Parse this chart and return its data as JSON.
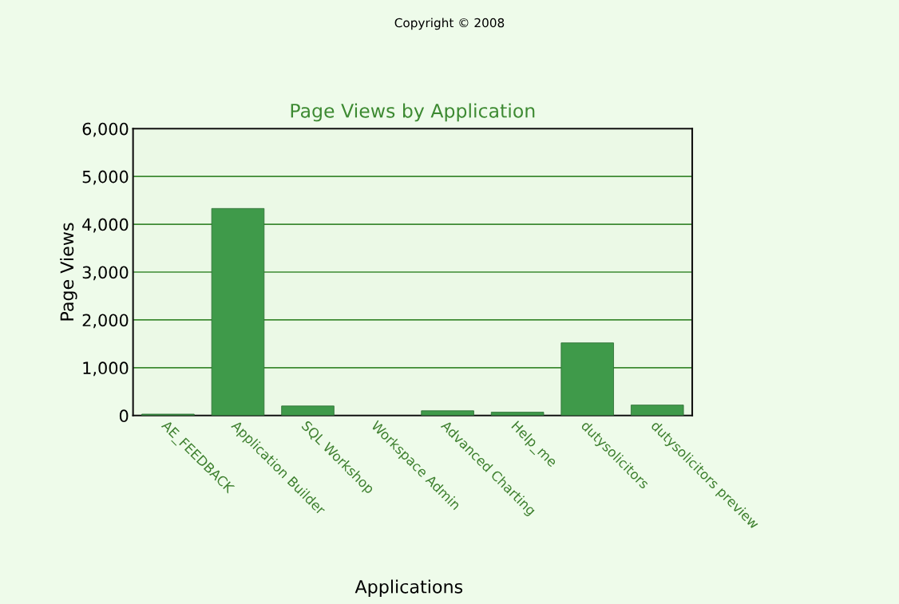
{
  "chart_data": {
    "type": "bar",
    "title": "Page Views by Application",
    "xlabel": "Applications",
    "ylabel": "Page Views",
    "annotations": [
      "Copyright © 2008"
    ],
    "categories": [
      "AE_FEEDBACK",
      "Application Builder",
      "SQL Workshop",
      "Workspace Admin",
      "Advanced Charting",
      "Help_me",
      "dutysolicitors",
      "dutysolicitors preview"
    ],
    "values": [
      30,
      4330,
      200,
      null,
      100,
      70,
      1520,
      220
    ],
    "color": "#3f9a4a",
    "ylim": [
      0,
      6000
    ],
    "yticks": [
      {
        "value": 0,
        "label": "0"
      },
      {
        "value": 1000,
        "label": "1,000"
      },
      {
        "value": 2000,
        "label": "2,000"
      },
      {
        "value": 3000,
        "label": "3,000"
      },
      {
        "value": 4000,
        "label": "4,000"
      },
      {
        "value": 5000,
        "label": "5,000"
      },
      {
        "value": 6000,
        "label": "6,000"
      }
    ],
    "grid": "y"
  }
}
